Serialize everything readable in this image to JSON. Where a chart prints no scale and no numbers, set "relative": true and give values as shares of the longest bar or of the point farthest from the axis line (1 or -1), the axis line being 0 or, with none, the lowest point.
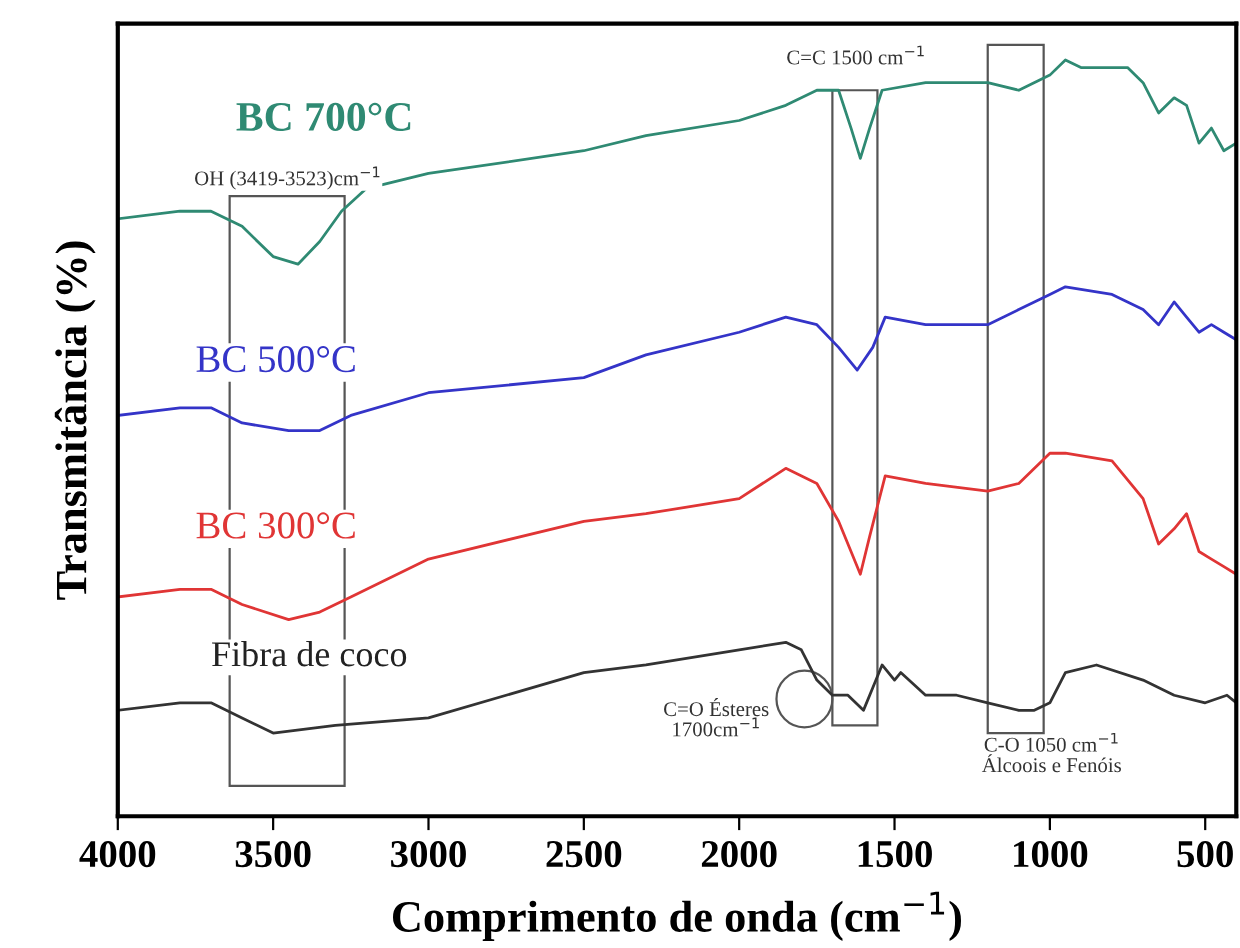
{
  "chart_data": {
    "type": "line",
    "relative": true,
    "xlabel": "Comprimento de onda (cm$^{−1}$)",
    "ylabel": "Transmitância (%)",
    "xlim": [
      4000,
      400
    ],
    "xticks": [
      4000,
      3500,
      3000,
      2500,
      2000,
      1500,
      1000,
      500
    ],
    "grid": false,
    "series": [
      {
        "name": "BC 700°C",
        "color": "#2f8a73",
        "x": [
          4000,
          3800,
          3700,
          3600,
          3500,
          3420,
          3350,
          3280,
          3200,
          3000,
          2500,
          2300,
          2000,
          1850,
          1750,
          1680,
          1640,
          1610,
          1580,
          1540,
          1400,
          1200,
          1100,
          1000,
          950,
          900,
          750,
          700,
          650,
          600,
          560,
          520,
          480,
          440,
          400
        ],
        "values": [
          0.79,
          0.8,
          0.8,
          0.78,
          0.74,
          0.73,
          0.76,
          0.8,
          0.83,
          0.85,
          0.88,
          0.9,
          0.92,
          0.94,
          0.96,
          0.96,
          0.91,
          0.87,
          0.91,
          0.96,
          0.97,
          0.97,
          0.96,
          0.98,
          1.0,
          0.99,
          0.99,
          0.97,
          0.93,
          0.95,
          0.94,
          0.89,
          0.91,
          0.88,
          0.89
        ]
      },
      {
        "name": "BC 500°C",
        "color": "#3434c8",
        "x": [
          4000,
          3800,
          3700,
          3600,
          3450,
          3350,
          3250,
          3000,
          2500,
          2300,
          2000,
          1850,
          1750,
          1680,
          1620,
          1570,
          1530,
          1400,
          1200,
          1100,
          1000,
          950,
          800,
          700,
          650,
          600,
          560,
          520,
          480,
          440,
          400
        ],
        "values": [
          0.53,
          0.54,
          0.54,
          0.52,
          0.51,
          0.51,
          0.53,
          0.56,
          0.58,
          0.61,
          0.64,
          0.66,
          0.65,
          0.62,
          0.59,
          0.62,
          0.66,
          0.65,
          0.65,
          0.67,
          0.69,
          0.7,
          0.69,
          0.67,
          0.65,
          0.68,
          0.66,
          0.64,
          0.65,
          0.64,
          0.63
        ]
      },
      {
        "name": "BC 300°C",
        "color": "#e03535",
        "x": [
          4000,
          3800,
          3700,
          3600,
          3450,
          3350,
          3250,
          3000,
          2500,
          2300,
          2000,
          1850,
          1750,
          1680,
          1640,
          1610,
          1580,
          1530,
          1400,
          1200,
          1100,
          1000,
          950,
          800,
          700,
          650,
          600,
          560,
          520,
          480,
          440,
          400
        ],
        "values": [
          0.29,
          0.3,
          0.3,
          0.28,
          0.26,
          0.27,
          0.29,
          0.34,
          0.39,
          0.4,
          0.42,
          0.46,
          0.44,
          0.39,
          0.35,
          0.32,
          0.37,
          0.45,
          0.44,
          0.43,
          0.44,
          0.48,
          0.48,
          0.47,
          0.42,
          0.36,
          0.38,
          0.4,
          0.35,
          0.34,
          0.33,
          0.32
        ]
      },
      {
        "name": "Fibra de coco",
        "color": "#333333",
        "x": [
          4000,
          3800,
          3700,
          3600,
          3500,
          3300,
          3000,
          2500,
          2300,
          2000,
          1850,
          1800,
          1750,
          1700,
          1650,
          1600,
          1570,
          1540,
          1500,
          1480,
          1400,
          1300,
          1200,
          1100,
          1050,
          1000,
          950,
          850,
          700,
          600,
          500,
          430,
          400
        ],
        "values": [
          0.14,
          0.15,
          0.15,
          0.13,
          0.11,
          0.12,
          0.13,
          0.19,
          0.2,
          0.22,
          0.23,
          0.22,
          0.18,
          0.16,
          0.16,
          0.14,
          0.17,
          0.2,
          0.18,
          0.19,
          0.16,
          0.16,
          0.15,
          0.14,
          0.14,
          0.15,
          0.19,
          0.2,
          0.18,
          0.16,
          0.15,
          0.16,
          0.15
        ]
      }
    ],
    "annotations": [
      "OH (3419-3523)cm$^{−1}$",
      "C=C 1500 cm$^{−1}$",
      "C=O Ésteres\n1700cm$^{−1}$",
      "C-O 1050 cm$^{−1}$\nÁlcoois e Fenóis"
    ]
  }
}
